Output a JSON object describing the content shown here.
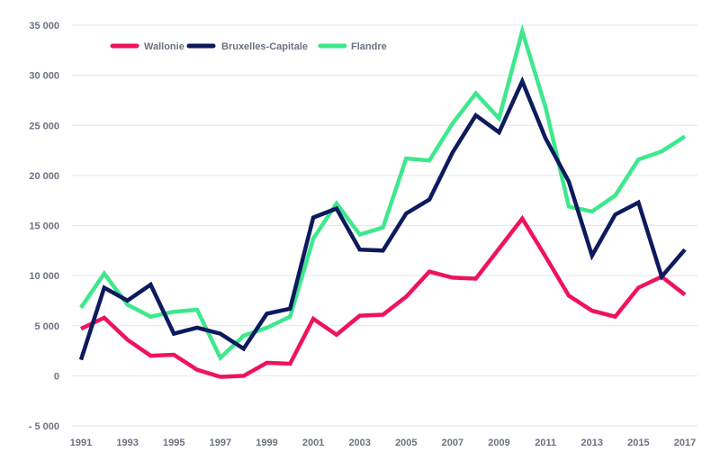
{
  "chart_data": {
    "type": "line",
    "title": "",
    "xlabel": "",
    "ylabel": "",
    "ylim": [
      -5000,
      35000
    ],
    "yticks": [
      -5000,
      0,
      5000,
      10000,
      15000,
      20000,
      25000,
      30000,
      35000
    ],
    "ytick_labels": [
      "- 5 000",
      "0",
      "5 000",
      "10 000",
      "15 000",
      "20 000",
      "25 000",
      "30 000",
      "35 000"
    ],
    "x": [
      1991,
      1992,
      1993,
      1994,
      1995,
      1996,
      1997,
      1998,
      1999,
      2000,
      2001,
      2002,
      2003,
      2004,
      2005,
      2006,
      2007,
      2008,
      2009,
      2010,
      2011,
      2012,
      2013,
      2014,
      2015,
      2016,
      2017
    ],
    "xtick_labels": [
      "1991",
      "1993",
      "1995",
      "1997",
      "1999",
      "2001",
      "2003",
      "2005",
      "2007",
      "2009",
      "2011",
      "2013",
      "2015",
      "2017"
    ],
    "grid": "horizontal",
    "legend_position": "top-left",
    "series": [
      {
        "name": "Wallonie",
        "color": "#f0125f",
        "values": [
          4700,
          5800,
          3600,
          2000,
          2100,
          600,
          -100,
          0,
          1300,
          1200,
          5700,
          4100,
          6000,
          6100,
          7900,
          10400,
          9800,
          9700,
          12700,
          15700,
          11900,
          8000,
          6500,
          5900,
          8800,
          9900,
          8100
        ]
      },
      {
        "name": "Bruxelles-Capitale",
        "color": "#0d1a5e",
        "values": [
          1600,
          8800,
          7500,
          9100,
          4200,
          4800,
          4200,
          2700,
          6200,
          6700,
          15800,
          16700,
          12600,
          12500,
          16200,
          17600,
          22300,
          26000,
          24300,
          29400,
          23700,
          19400,
          12000,
          16100,
          17300,
          9900,
          12600
        ]
      },
      {
        "name": "Flandre",
        "color": "#3ee88c",
        "values": [
          6800,
          10200,
          7100,
          5900,
          6400,
          6600,
          1800,
          4000,
          4800,
          5900,
          13700,
          17200,
          14100,
          14800,
          21700,
          21500,
          25200,
          28200,
          25700,
          34400,
          26800,
          16900,
          16400,
          18000,
          21600,
          22400,
          23900
        ]
      }
    ]
  }
}
